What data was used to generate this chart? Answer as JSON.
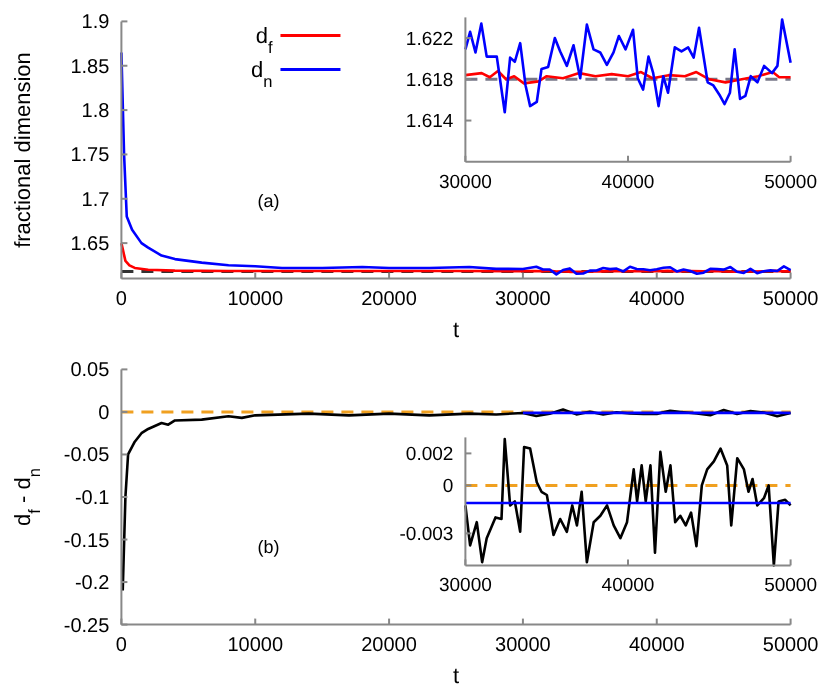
{
  "chart_data": [
    {
      "type": "line",
      "xlabel": "t",
      "ylabel": "fractional dimension",
      "xlim": [
        0,
        50000
      ],
      "xticks": [
        0,
        10000,
        20000,
        30000,
        40000,
        50000
      ],
      "ylim": [
        1.61,
        1.9
      ],
      "yticks": [
        1.65,
        1.7,
        1.75,
        1.8,
        1.85,
        1.9
      ],
      "legend": "top",
      "annotations": [
        "(a)"
      ],
      "ref_lines": [
        {
          "axis": "y",
          "value": 1.618,
          "color": "#333333",
          "line_style": "dashed"
        }
      ],
      "series": [
        {
          "name": "d$_{f}$",
          "color": "#ff0000",
          "x": [
            0,
            300,
            600,
            1000,
            2000,
            4000,
            8000,
            15000,
            25000,
            30000,
            31000,
            31500,
            32000,
            32500,
            33000,
            33600,
            34500,
            35000,
            36000,
            37000,
            38000,
            39000,
            40000,
            40800,
            41500,
            42500,
            43500,
            44200,
            45000,
            46000,
            47000,
            48000,
            48900,
            49300,
            50000
          ],
          "values": [
            1.65,
            1.63,
            1.625,
            1.622,
            1.62,
            1.619,
            1.6185,
            1.6185,
            1.6185,
            1.6184,
            1.6186,
            1.6182,
            1.6188,
            1.618,
            1.6183,
            1.6176,
            1.6178,
            1.6183,
            1.6181,
            1.6186,
            1.6183,
            1.6185,
            1.6183,
            1.6187,
            1.6181,
            1.6184,
            1.6183,
            1.6187,
            1.618,
            1.6177,
            1.618,
            1.6183,
            1.6187,
            1.6182,
            1.6182
          ]
        },
        {
          "name": "d$_{n}$",
          "color": "#0000ff",
          "x": [
            0,
            200,
            400,
            800,
            1500,
            2000,
            3000,
            4000,
            5000,
            6000,
            8000,
            10000,
            12000,
            15000,
            18000,
            20000,
            23000,
            26000,
            28000,
            30000,
            31000,
            31500,
            32000,
            32500,
            33000,
            33500,
            34000,
            34500,
            35000,
            35500,
            36000,
            36500,
            37000,
            37500,
            38000,
            38500,
            39000,
            39500,
            40000,
            40500,
            41000,
            41500,
            42000,
            42500,
            43000,
            43500,
            44000,
            44500,
            45000,
            45500,
            46000,
            46500,
            47000,
            47500,
            48000,
            48500,
            49000,
            49500,
            50000
          ],
          "values": [
            1.865,
            1.75,
            1.68,
            1.665,
            1.65,
            1.645,
            1.636,
            1.632,
            1.63,
            1.628,
            1.625,
            1.624,
            1.622,
            1.622,
            1.623,
            1.622,
            1.622,
            1.623,
            1.621,
            1.6209,
            1.6234,
            1.6202,
            1.6202,
            1.6148,
            1.6197,
            1.6215,
            1.6154,
            1.6158,
            1.619,
            1.6192,
            1.622,
            1.6207,
            1.6213,
            1.6181,
            1.6233,
            1.6209,
            1.6206,
            1.6194,
            1.6206,
            1.6222,
            1.6228,
            1.6181,
            1.6202,
            1.6186,
            1.6154,
            1.6167,
            1.6211,
            1.6207,
            1.6201,
            1.623,
            1.6177,
            1.6164,
            1.6209,
            1.6161,
            1.6183,
            1.6193,
            1.6186,
            1.6238,
            1.6196
          ]
        }
      ]
    },
    {
      "type": "line",
      "xlim": [
        30000,
        50000
      ],
      "xticks": [
        30000,
        40000,
        50000
      ],
      "ylim": [
        1.61,
        1.624
      ],
      "yticks": [
        1.614,
        1.618,
        1.622
      ],
      "ref_lines": [
        {
          "axis": "y",
          "value": 1.618,
          "color": "#777788",
          "line_style": "dashed"
        }
      ],
      "series": [
        {
          "color": "#ff0000",
          "x": [
            30000,
            31000,
            31500,
            32000,
            32500,
            33000,
            33600,
            34500,
            35000,
            36000,
            37000,
            38000,
            39000,
            40000,
            40800,
            41500,
            42500,
            43500,
            44200,
            45000,
            46000,
            47000,
            48000,
            48900,
            49300,
            50000
          ],
          "values": [
            1.6184,
            1.6186,
            1.6182,
            1.6188,
            1.618,
            1.6183,
            1.6176,
            1.6178,
            1.6183,
            1.6181,
            1.6186,
            1.6183,
            1.6185,
            1.6183,
            1.6187,
            1.6181,
            1.6184,
            1.6183,
            1.6187,
            1.618,
            1.6177,
            1.618,
            1.6183,
            1.6187,
            1.6182,
            1.6182
          ]
        },
        {
          "color": "#0000ff",
          "x": [
            30000,
            30290,
            30620,
            30980,
            31310,
            31930,
            32130,
            32420,
            32750,
            33040,
            33370,
            33700,
            33980,
            34390,
            34680,
            35090,
            35500,
            35830,
            36240,
            36650,
            37060,
            37470,
            37880,
            38290,
            38700,
            39110,
            39440,
            39850,
            40310,
            40600,
            40930,
            41260,
            41550,
            41880,
            42170,
            42460,
            42880,
            43290,
            43700,
            44040,
            44370,
            44900,
            45250,
            45660,
            45940,
            46270,
            46560,
            46890,
            47220,
            47550,
            47960,
            48370,
            48860,
            49190,
            49480,
            50000
          ],
          "values": [
            1.6209,
            1.6226,
            1.6206,
            1.6234,
            1.6202,
            1.6202,
            1.618,
            1.6148,
            1.6201,
            1.6197,
            1.6215,
            1.6174,
            1.6154,
            1.6158,
            1.619,
            1.6192,
            1.622,
            1.6207,
            1.6193,
            1.6213,
            1.6181,
            1.6233,
            1.6209,
            1.6206,
            1.6194,
            1.6206,
            1.6222,
            1.6209,
            1.6228,
            1.6181,
            1.617,
            1.6202,
            1.6186,
            1.6154,
            1.6183,
            1.6167,
            1.6211,
            1.6207,
            1.6211,
            1.6201,
            1.623,
            1.6177,
            1.6174,
            1.6164,
            1.6156,
            1.6167,
            1.6209,
            1.6161,
            1.6164,
            1.6183,
            1.6177,
            1.6193,
            1.6186,
            1.6193,
            1.6238,
            1.6196
          ]
        }
      ]
    },
    {
      "type": "line",
      "xlabel": "t",
      "ylabel": "d$_{f}$ - d$_{n}$",
      "xlim": [
        0,
        50000
      ],
      "xticks": [
        0,
        10000,
        20000,
        30000,
        40000,
        50000
      ],
      "ylim": [
        -0.25,
        0.05
      ],
      "yticks": [
        0.05,
        0,
        -0.05,
        -0.1,
        -0.15,
        -0.2,
        -0.25
      ],
      "annotations": [
        "(b)"
      ],
      "ref_lines": [
        {
          "axis": "y",
          "value": 0,
          "color": "#f0a020",
          "line_style": "dashed"
        }
      ],
      "series": [
        {
          "color": "#000000",
          "x": [
            100,
            300,
            500,
            1000,
            1500,
            2000,
            3000,
            3500,
            4000,
            6000,
            8000,
            9000,
            10000,
            14000,
            17000,
            20000,
            23000,
            26000,
            28000,
            30000,
            31000,
            32000,
            33000,
            34000,
            35000,
            36000,
            37000,
            38000,
            39000,
            40000,
            41000,
            42000,
            43000,
            44000,
            45000,
            46000,
            47000,
            48000,
            49000,
            50000
          ],
          "values": [
            -0.21,
            -0.1,
            -0.05,
            -0.035,
            -0.025,
            -0.02,
            -0.013,
            -0.015,
            -0.01,
            -0.009,
            -0.005,
            -0.007,
            -0.004,
            -0.002,
            -0.004,
            -0.002,
            -0.004,
            -0.002,
            -0.003,
            -0.0012,
            -0.0048,
            -0.002,
            0.0029,
            -0.0029,
            0.0002,
            -0.0029,
            -0.0004,
            -0.0019,
            -0.0025,
            -0.0023,
            0.0013,
            -0.0004,
            -0.0019,
            -0.0038,
            0.0023,
            -0.0025,
            0.001,
            -0.0008,
            -0.005,
            -0.0012
          ]
        },
        {
          "color": "#0000ff",
          "x": [
            30000,
            50000
          ],
          "values": [
            -0.0011,
            -0.0011
          ]
        }
      ]
    },
    {
      "type": "line",
      "xlim": [
        30000,
        50000
      ],
      "xticks": [
        30000,
        40000,
        50000
      ],
      "ylim": [
        -0.005,
        0.003
      ],
      "yticks": [
        0.002,
        0,
        -0.003
      ],
      "ref_lines": [
        {
          "axis": "y",
          "value": 0,
          "color": "#f0a020",
          "line_style": "dashed"
        }
      ],
      "series": [
        {
          "color": "#000000",
          "x": [
            30000,
            30290,
            30700,
            31030,
            31310,
            31850,
            32220,
            32420,
            32750,
            33040,
            33370,
            33610,
            33980,
            34390,
            34680,
            35010,
            35420,
            35830,
            36240,
            36570,
            36860,
            37150,
            37470,
            37890,
            38300,
            38710,
            39120,
            39530,
            39940,
            40350,
            40560,
            40840,
            41090,
            41380,
            41660,
            41990,
            42320,
            42610,
            42900,
            43220,
            43550,
            43880,
            44210,
            44540,
            44870,
            45280,
            45690,
            46100,
            46350,
            46720,
            47130,
            47410,
            47660,
            47950,
            48360,
            48650,
            48970,
            49260,
            49670,
            50000
          ],
          "values": [
            -0.00125,
            -0.00375,
            -0.0023,
            -0.0048,
            -0.0033,
            -0.002,
            -0.0021,
            0.0029,
            -0.00125,
            -0.001,
            -0.0029,
            0.0024,
            0.0023,
            0.0002,
            -0.0004,
            -0.0006,
            -0.0031,
            -0.0021,
            -0.0029,
            -0.00125,
            -0.0025,
            -0.0004,
            -0.0048,
            -0.0023,
            -0.0019,
            -0.00125,
            -0.0025,
            -0.0033,
            -0.0023,
            0.001,
            -0.001,
            0.00125,
            -0.001,
            0.00125,
            -0.0042,
            0.0021,
            -0.0004,
            0.00125,
            -0.0023,
            -0.0019,
            -0.0025,
            -0.0017,
            -0.0038,
            0,
            0.001,
            0.0015,
            0.0023,
            0.00125,
            -0.0025,
            0.0017,
            0.001,
            -0.0004,
            0.0004,
            -0.00125,
            -0.0008,
            0,
            -0.005,
            -0.001,
            -0.0009,
            -0.00125
          ]
        },
        {
          "color": "#0000ff",
          "x": [
            30000,
            50000
          ],
          "values": [
            -0.0011,
            -0.0011
          ]
        }
      ]
    }
  ]
}
